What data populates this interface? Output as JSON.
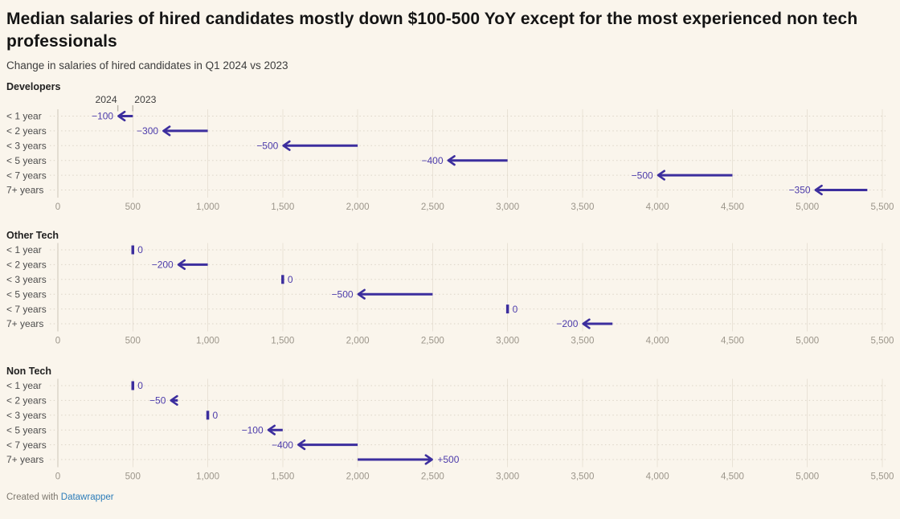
{
  "footer": {
    "credit_prefix": "Created with ",
    "credit_link": "Datawrapper"
  },
  "colors": {
    "background": "#faf5ec",
    "title": "#141414",
    "subtitle": "#3c3c3c",
    "panel_title": "#212121",
    "arrow": "#3c2e9e",
    "value_label": "#4d3cab",
    "row_label": "#4c4c4c",
    "axis_label": "#9c968b",
    "gridline": "#e9e2d6",
    "zero_gridline": "#ccc5b8",
    "dotted_guide": "#dcd5c8",
    "column_label": "#3e3e3e",
    "column_tick": "#bcb6ab",
    "footer_text": "#7d786f",
    "link": "#2b7cb9"
  },
  "chart_data": {
    "type": "arrow",
    "note": "Arrow plot: each arrow points from the 2023 median salary to the 2024 median salary; zero-change rows show a short vertical marker.",
    "title": "Median salaries of hired candidates mostly down $100-500 YoY except for the most experienced non tech professionals",
    "subtitle": "Change in salaries of hired candidates in Q1 2024 vs 2023",
    "x_axis": {
      "min": 0,
      "max": 5500,
      "tick_step": 500,
      "tick_labels": [
        "0",
        "500",
        "1,000",
        "1,500",
        "2,000",
        "2,500",
        "3,000",
        "3,500",
        "4,000",
        "4,500",
        "5,000",
        "5,500"
      ],
      "grid": true
    },
    "column_labels": {
      "end_2024": "2024",
      "start_2023": "2023"
    },
    "panels": [
      {
        "group": "Developers",
        "rows": [
          {
            "label": "< 1 year",
            "value_2023": 500,
            "value_2024": 400,
            "change": -100,
            "change_label": "−100"
          },
          {
            "label": "< 2 years",
            "value_2023": 1000,
            "value_2024": 700,
            "change": -300,
            "change_label": "−300"
          },
          {
            "label": "< 3 years",
            "value_2023": 2000,
            "value_2024": 1500,
            "change": -500,
            "change_label": "−500"
          },
          {
            "label": "< 5 years",
            "value_2023": 3000,
            "value_2024": 2600,
            "change": -400,
            "change_label": "−400"
          },
          {
            "label": "< 7 years",
            "value_2023": 4500,
            "value_2024": 4000,
            "change": -500,
            "change_label": "−500"
          },
          {
            "label": "7+ years",
            "value_2023": 5400,
            "value_2024": 5050,
            "change": -350,
            "change_label": "−350"
          }
        ]
      },
      {
        "group": "Other Tech",
        "rows": [
          {
            "label": "< 1 year",
            "value_2023": 500,
            "value_2024": 500,
            "change": 0,
            "change_label": "0"
          },
          {
            "label": "< 2 years",
            "value_2023": 1000,
            "value_2024": 800,
            "change": -200,
            "change_label": "−200"
          },
          {
            "label": "< 3 years",
            "value_2023": 1500,
            "value_2024": 1500,
            "change": 0,
            "change_label": "0"
          },
          {
            "label": "< 5 years",
            "value_2023": 2500,
            "value_2024": 2000,
            "change": -500,
            "change_label": "−500"
          },
          {
            "label": "< 7 years",
            "value_2023": 3000,
            "value_2024": 3000,
            "change": 0,
            "change_label": "0"
          },
          {
            "label": "7+ years",
            "value_2023": 3700,
            "value_2024": 3500,
            "change": -200,
            "change_label": "−200"
          }
        ]
      },
      {
        "group": "Non Tech",
        "rows": [
          {
            "label": "< 1 year",
            "value_2023": 500,
            "value_2024": 500,
            "change": 0,
            "change_label": "0"
          },
          {
            "label": "< 2 years",
            "value_2023": 800,
            "value_2024": 750,
            "change": -50,
            "change_label": "−50"
          },
          {
            "label": "< 3 years",
            "value_2023": 1000,
            "value_2024": 1000,
            "change": 0,
            "change_label": "0"
          },
          {
            "label": "< 5 years",
            "value_2023": 1500,
            "value_2024": 1400,
            "change": -100,
            "change_label": "−100"
          },
          {
            "label": "< 7 years",
            "value_2023": 2000,
            "value_2024": 1600,
            "change": -400,
            "change_label": "−400"
          },
          {
            "label": "7+ years",
            "value_2023": 2000,
            "value_2024": 2500,
            "change": 500,
            "change_label": "+500"
          }
        ]
      }
    ]
  }
}
